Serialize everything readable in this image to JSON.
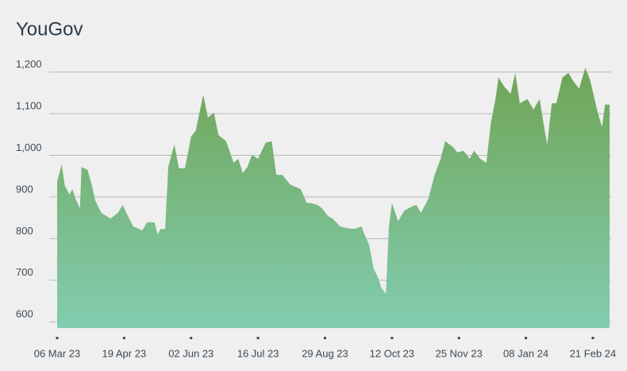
{
  "chart_data": {
    "type": "area",
    "title": "YouGov",
    "x": [
      "2023-03-06",
      "2023-03-09",
      "2023-03-11",
      "2023-03-14",
      "2023-03-16",
      "2023-03-18",
      "2023-03-21",
      "2023-03-22",
      "2023-03-26",
      "2023-03-29",
      "2023-03-31",
      "2023-04-04",
      "2023-04-10",
      "2023-04-15",
      "2023-04-18",
      "2023-04-21",
      "2023-04-25",
      "2023-05-01",
      "2023-05-04",
      "2023-05-09",
      "2023-05-11",
      "2023-05-13",
      "2023-05-16",
      "2023-05-18",
      "2023-05-22",
      "2023-05-25",
      "2023-05-29",
      "2023-06-02",
      "2023-06-05",
      "2023-06-10",
      "2023-06-13",
      "2023-06-17",
      "2023-06-20",
      "2023-06-25",
      "2023-06-30",
      "2023-07-03",
      "2023-07-06",
      "2023-07-09",
      "2023-07-12",
      "2023-07-16",
      "2023-07-21",
      "2023-07-25",
      "2023-07-28",
      "2023-08-01",
      "2023-08-06",
      "2023-08-13",
      "2023-08-17",
      "2023-08-20",
      "2023-08-24",
      "2023-08-27",
      "2023-08-31",
      "2023-09-03",
      "2023-09-08",
      "2023-09-13",
      "2023-09-17",
      "2023-09-22",
      "2023-09-24",
      "2023-09-27",
      "2023-09-30",
      "2023-10-03",
      "2023-10-05",
      "2023-10-08",
      "2023-10-10",
      "2023-10-12",
      "2023-10-16",
      "2023-10-20",
      "2023-10-25",
      "2023-10-28",
      "2023-10-31",
      "2023-11-05",
      "2023-11-09",
      "2023-11-13",
      "2023-11-16",
      "2023-11-21",
      "2023-11-24",
      "2023-11-28",
      "2023-12-02",
      "2023-12-05",
      "2023-12-09",
      "2023-12-13",
      "2023-12-16",
      "2023-12-19",
      "2023-12-21",
      "2023-12-25",
      "2023-12-29",
      "2024-01-01",
      "2024-01-04",
      "2024-01-09",
      "2024-01-13",
      "2024-01-17",
      "2024-01-20",
      "2024-01-22",
      "2024-01-25",
      "2024-01-28",
      "2024-02-01",
      "2024-02-05",
      "2024-02-08",
      "2024-02-12",
      "2024-02-16",
      "2024-02-19",
      "2024-02-24",
      "2024-02-27",
      "2024-02-29",
      "2024-03-03"
    ],
    "values": [
      938,
      978,
      928,
      906,
      919,
      896,
      873,
      972,
      965,
      925,
      892,
      862,
      848,
      862,
      881,
      858,
      829,
      820,
      839,
      839,
      810,
      823,
      823,
      972,
      1026,
      969,
      969,
      1045,
      1059,
      1145,
      1091,
      1102,
      1049,
      1034,
      982,
      992,
      957,
      972,
      1001,
      992,
      1030,
      1034,
      953,
      953,
      930,
      919,
      886,
      885,
      881,
      873,
      854,
      848,
      829,
      825,
      823,
      829,
      810,
      785,
      728,
      705,
      682,
      667,
      829,
      886,
      842,
      867,
      877,
      881,
      862,
      896,
      953,
      992,
      1034,
      1020,
      1007,
      1011,
      992,
      1011,
      992,
      982,
      1078,
      1135,
      1187,
      1164,
      1148,
      1198,
      1125,
      1135,
      1110,
      1135,
      1068,
      1026,
      1125,
      1125,
      1187,
      1198,
      1179,
      1160,
      1210,
      1183,
      1106,
      1068,
      1122,
      1122
    ],
    "gradient": [
      "#6fa555",
      "#82ccb0"
    ],
    "xlim": [
      "2023-03-06",
      "2024-03-04"
    ],
    "xticks": [
      {
        "value": "2023-03-06",
        "label": "06 Mar 23"
      },
      {
        "value": "2023-04-19",
        "label": "19 Apr 23"
      },
      {
        "value": "2023-06-02",
        "label": "02 Jun 23"
      },
      {
        "value": "2023-07-16",
        "label": "16 Jul 23"
      },
      {
        "value": "2023-08-29",
        "label": "29 Aug 23"
      },
      {
        "value": "2023-10-12",
        "label": "12 Oct 23"
      },
      {
        "value": "2023-11-25",
        "label": "25 Nov 23"
      },
      {
        "value": "2024-01-08",
        "label": "08 Jan 24"
      },
      {
        "value": "2024-02-21",
        "label": "21 Feb 24"
      }
    ],
    "ylim": [
      585,
      1230
    ],
    "yticks": [
      600,
      700,
      800,
      900,
      {
        "value": 1000,
        "label": "1,000"
      },
      {
        "value": 1100,
        "label": "1,100"
      },
      {
        "value": 1200,
        "label": "1,200"
      }
    ],
    "grid": true
  }
}
